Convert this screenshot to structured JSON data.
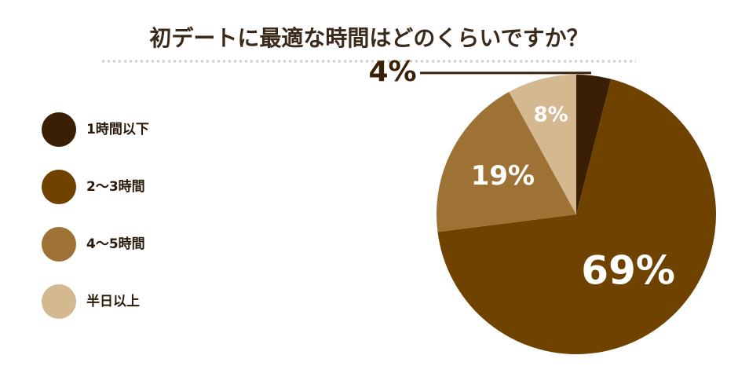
{
  "chart_data": {
    "type": "pie",
    "title": "初デートに最適な時間はどのくらいですか？",
    "categories": [
      "1時間以下",
      "2〜3時間",
      "4〜5時間",
      "半日以上"
    ],
    "values": [
      4,
      69,
      19,
      8
    ],
    "value_labels": [
      "4%",
      "69%",
      "19%",
      "8%"
    ],
    "colors": [
      "#3a1f04",
      "#6f4200",
      "#9e7235",
      "#d4b990"
    ],
    "legend": "left"
  }
}
